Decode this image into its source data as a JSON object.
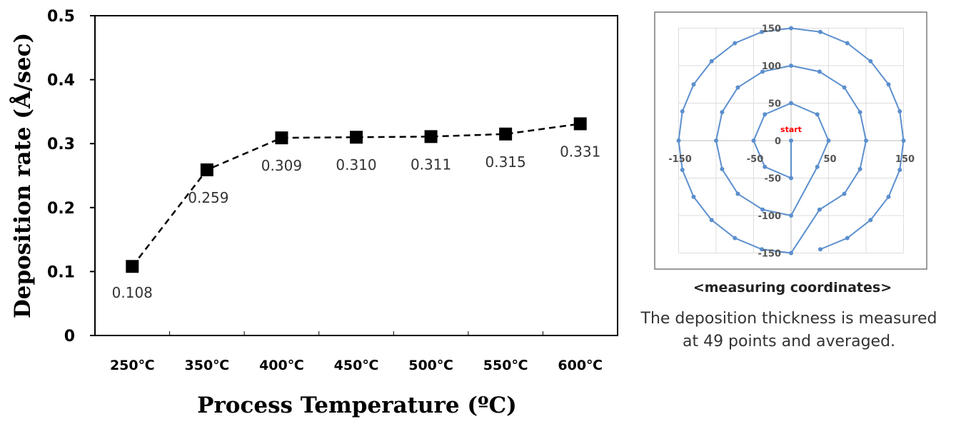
{
  "chart_data": [
    {
      "type": "line",
      "ylabel": "Deposition rate (Å/sec)",
      "xlabel": "Process Temperature (ºC)",
      "categories": [
        "250℃",
        "350℃",
        "400℃",
        "450℃",
        "500℃",
        "550℃",
        "600℃"
      ],
      "values": [
        0.108,
        0.259,
        0.309,
        0.31,
        0.311,
        0.315,
        0.331
      ],
      "data_labels": [
        "0.108",
        "0.259",
        "0.309",
        "0.310",
        "0.311",
        "0.315",
        "0.331"
      ],
      "ylim": [
        0,
        0.5
      ],
      "yticks": [
        "0",
        "0.1",
        "0.2",
        "0.3",
        "0.4",
        "0.5"
      ],
      "marker": "square",
      "line_style": "dashed",
      "line_color": "#000000",
      "grid": false
    },
    {
      "type": "scatter",
      "title": "",
      "caption": "<measuring coordinates>",
      "annotation": "start",
      "annotation_color": "#ff0000",
      "line_color": "#5b8fce",
      "grid": true,
      "xlim": [
        -150,
        150
      ],
      "ylim": [
        -150,
        150
      ],
      "xticks": [
        "-150",
        "-50",
        "50",
        "150"
      ],
      "yticks": [
        "150",
        "100",
        "50",
        "0",
        "-50",
        "-100",
        "-150"
      ],
      "points": [
        [
          0,
          0
        ],
        [
          0,
          -50
        ],
        [
          -35,
          -35
        ],
        [
          -50,
          0
        ],
        [
          -35,
          35
        ],
        [
          0,
          50
        ],
        [
          35,
          35
        ],
        [
          50,
          0
        ],
        [
          35,
          -35
        ],
        [
          0,
          -100
        ],
        [
          -38,
          -92
        ],
        [
          -71,
          -71
        ],
        [
          -92,
          -38
        ],
        [
          -100,
          0
        ],
        [
          -92,
          38
        ],
        [
          -71,
          71
        ],
        [
          -38,
          92
        ],
        [
          0,
          100
        ],
        [
          38,
          92
        ],
        [
          71,
          71
        ],
        [
          92,
          38
        ],
        [
          100,
          0
        ],
        [
          92,
          -38
        ],
        [
          71,
          -71
        ],
        [
          38,
          -92
        ],
        [
          0,
          -150
        ],
        [
          -39,
          -145
        ],
        [
          -75,
          -130
        ],
        [
          -106,
          -106
        ],
        [
          -130,
          -75
        ],
        [
          -145,
          -39
        ],
        [
          -150,
          0
        ],
        [
          -145,
          39
        ],
        [
          -130,
          75
        ],
        [
          -106,
          106
        ],
        [
          -75,
          130
        ],
        [
          -39,
          145
        ],
        [
          0,
          150
        ],
        [
          39,
          145
        ],
        [
          75,
          130
        ],
        [
          106,
          106
        ],
        [
          130,
          75
        ],
        [
          145,
          39
        ],
        [
          150,
          0
        ],
        [
          145,
          -39
        ],
        [
          130,
          -75
        ],
        [
          106,
          -106
        ],
        [
          75,
          -130
        ],
        [
          39,
          -145
        ]
      ]
    }
  ],
  "notes": {
    "line1": "The deposition thickness is measured",
    "line2": "at 49 points and averaged."
  }
}
